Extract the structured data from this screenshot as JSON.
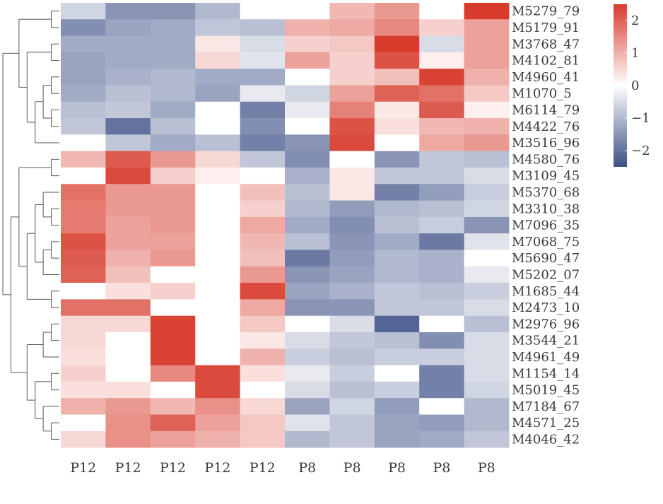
{
  "chart_data": {
    "type": "heatmap",
    "title": "",
    "xlabel": "",
    "ylabel": "",
    "columns": [
      "P12",
      "P12",
      "P12",
      "P12",
      "P12",
      "P8",
      "P8",
      "P8",
      "P8",
      "P8"
    ],
    "rows": [
      "M5279_79",
      "M5179_91",
      "M3768_47",
      "M4102_81",
      "M4960_41",
      "M1070_5",
      "M6114_79",
      "M4422_76",
      "M3516_96",
      "M4580_76",
      "M3109_45",
      "M5370_68",
      "M3310_38",
      "M7096_35",
      "M7068_75",
      "M5690_47",
      "M5202_07",
      "M1685_44",
      "M2473_10",
      "M2976_96",
      "M3544_21",
      "M4961_49",
      "M1154_14",
      "M5019_45",
      "M7184_67",
      "M4571_25",
      "M4046_42"
    ],
    "values": [
      [
        -0.6,
        -1.5,
        -1.5,
        -1.0,
        0.0,
        0.0,
        0.9,
        1.3,
        0.0,
        2.5
      ],
      [
        -1.6,
        -1.3,
        -1.2,
        -0.8,
        -0.9,
        1.0,
        1.1,
        1.5,
        0.6,
        1.2
      ],
      [
        -1.2,
        -1.2,
        -1.2,
        0.3,
        -0.5,
        0.6,
        0.7,
        2.5,
        -0.5,
        1.2
      ],
      [
        -1.3,
        -1.2,
        -1.2,
        0.5,
        -0.4,
        1.2,
        0.6,
        2.2,
        0.2,
        1.2
      ],
      [
        -1.3,
        -1.1,
        -1.0,
        -1.2,
        -1.2,
        0.0,
        0.6,
        0.8,
        2.4,
        1.0
      ],
      [
        -1.2,
        -0.9,
        -1.0,
        -1.3,
        -0.3,
        -0.6,
        1.2,
        2.0,
        1.8,
        0.7
      ],
      [
        -0.9,
        -0.8,
        -1.2,
        0.0,
        -1.8,
        -0.3,
        1.6,
        0.3,
        2.1,
        0.2
      ],
      [
        -0.8,
        -2.0,
        -0.9,
        0.0,
        -1.6,
        0.0,
        2.2,
        0.4,
        0.9,
        1.0
      ],
      [
        0.0,
        -0.8,
        -1.2,
        -0.9,
        -1.8,
        -1.5,
        2.3,
        0.0,
        1.1,
        1.3
      ],
      [
        0.9,
        2.1,
        1.3,
        0.5,
        -0.8,
        -1.6,
        0.0,
        -1.5,
        -0.8,
        -0.9
      ],
      [
        0.0,
        2.3,
        0.6,
        0.2,
        0.0,
        -1.1,
        0.3,
        -0.8,
        -0.8,
        -0.5
      ],
      [
        1.8,
        1.3,
        1.3,
        0.0,
        0.8,
        -0.9,
        0.3,
        -1.8,
        -1.4,
        -0.7
      ],
      [
        1.7,
        1.3,
        1.3,
        0.0,
        0.6,
        -1.0,
        -1.4,
        -1.0,
        -0.9,
        -0.6
      ],
      [
        1.7,
        1.2,
        1.3,
        0.0,
        1.1,
        -1.2,
        -1.6,
        -0.9,
        -0.7,
        -1.5
      ],
      [
        2.2,
        1.2,
        1.2,
        0.0,
        0.9,
        -0.9,
        -1.5,
        -1.2,
        -1.9,
        -0.4
      ],
      [
        2.1,
        1.0,
        1.3,
        0.0,
        0.8,
        -1.9,
        -1.4,
        -1.0,
        -1.1,
        0.0
      ],
      [
        2.0,
        0.8,
        0.0,
        0.0,
        1.3,
        -1.5,
        -1.3,
        -1.0,
        -1.1,
        -0.3
      ],
      [
        0.0,
        0.4,
        0.6,
        0.0,
        2.3,
        -1.3,
        -1.1,
        -0.8,
        -0.9,
        -0.7
      ],
      [
        1.8,
        1.8,
        0.0,
        0.0,
        1.1,
        -1.5,
        -1.5,
        -0.8,
        -0.8,
        -0.5
      ],
      [
        0.5,
        0.5,
        2.4,
        0.0,
        0.7,
        0.0,
        -0.5,
        -2.2,
        0.0,
        -0.9
      ],
      [
        0.5,
        0.0,
        2.4,
        0.0,
        0.3,
        -0.5,
        -0.8,
        -0.9,
        -1.6,
        -0.5
      ],
      [
        0.4,
        0.0,
        2.4,
        0.0,
        1.0,
        -0.7,
        -0.9,
        -0.7,
        -0.7,
        -0.5
      ],
      [
        0.6,
        0.0,
        1.5,
        2.3,
        0.4,
        -0.3,
        -0.7,
        0.0,
        -1.8,
        -0.5
      ],
      [
        0.4,
        0.4,
        0.0,
        2.3,
        0.0,
        -0.5,
        -0.9,
        -0.7,
        -1.8,
        -0.6
      ],
      [
        1.0,
        1.3,
        0.9,
        1.4,
        0.5,
        -1.3,
        -0.6,
        -1.4,
        0.0,
        -1.0
      ],
      [
        0.0,
        1.4,
        2.0,
        1.2,
        0.7,
        -0.4,
        -0.8,
        -1.3,
        -1.4,
        -1.0
      ],
      [
        0.5,
        1.4,
        1.2,
        1.0,
        0.7,
        -1.0,
        -0.8,
        -1.3,
        -1.2,
        -0.8
      ]
    ],
    "scale": {
      "min": -2.5,
      "max": 2.5,
      "ticks": [
        2,
        1,
        0,
        -1,
        -2
      ]
    },
    "colors": {
      "low": "#3c4f86",
      "mid": "#ffffff",
      "high": "#d73b2c"
    },
    "dendrogram": {
      "side": "left",
      "merges": [
        [
          0,
          1
        ],
        [
          2,
          3
        ],
        [
          4,
          5
        ],
        [
          6,
          7
        ],
        [
          -3,
          -4
        ],
        [
          -5,
          8
        ],
        [
          -2,
          -6
        ],
        [
          -1,
          -7
        ],
        [
          9,
          10
        ],
        [
          14,
          15
        ],
        [
          -10,
          16
        ],
        [
          12,
          13
        ],
        [
          11,
          -12
        ],
        [
          -13,
          -11
        ],
        [
          17,
          18
        ],
        [
          -15,
          -14
        ],
        [
          -9,
          -16
        ],
        [
          19,
          20
        ],
        [
          -18,
          21
        ],
        [
          22,
          23
        ],
        [
          25,
          26
        ],
        [
          24,
          -21
        ],
        [
          -20,
          -22
        ],
        [
          -19,
          -23
        ],
        [
          -17,
          -24
        ],
        [
          -8,
          -25
        ]
      ]
    }
  }
}
